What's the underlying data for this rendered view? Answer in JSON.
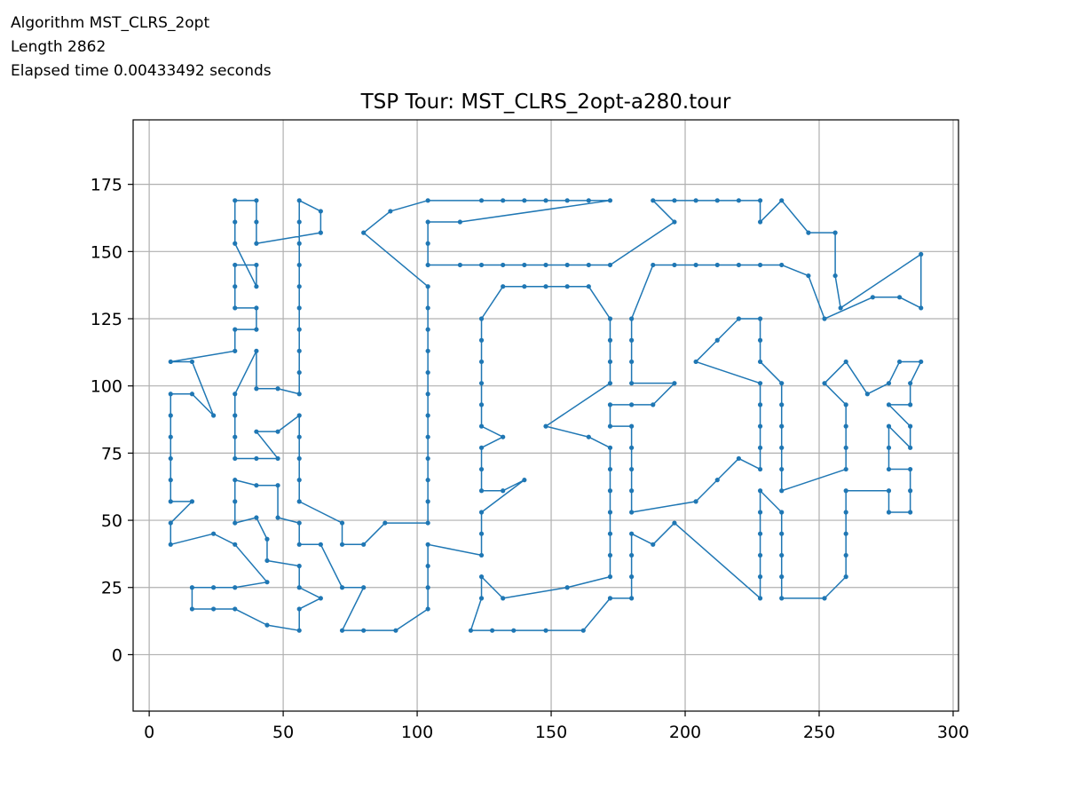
{
  "info_lines": [
    "Algorithm MST_CLRS_2opt",
    "Length 2862",
    "Elapsed time 0.00433492 seconds"
  ],
  "colors": {
    "tour": "#1f77b4",
    "grid": "#b0b0b0",
    "axes": "#000000"
  },
  "chart_data": {
    "type": "line",
    "title": "TSP Tour: MST_CLRS_2opt-a280.tour",
    "xlabel": "",
    "ylabel": "",
    "xlim": [
      -6,
      302
    ],
    "ylim": [
      -21,
      199
    ],
    "xticks": [
      0,
      50,
      100,
      150,
      200,
      250,
      300
    ],
    "yticks": [
      0,
      25,
      50,
      75,
      100,
      125,
      150,
      175
    ],
    "grid": true,
    "markers": true,
    "tour": [
      [
        8,
        41
      ],
      [
        8,
        49
      ],
      [
        16,
        57
      ],
      [
        8,
        57
      ],
      [
        8,
        65
      ],
      [
        8,
        73
      ],
      [
        8,
        81
      ],
      [
        8,
        89
      ],
      [
        8,
        97
      ],
      [
        16,
        97
      ],
      [
        24,
        89
      ],
      [
        16,
        109
      ],
      [
        8,
        109
      ],
      [
        32,
        113
      ],
      [
        32,
        121
      ],
      [
        40,
        121
      ],
      [
        40,
        129
      ],
      [
        32,
        129
      ],
      [
        32,
        137
      ],
      [
        32,
        145
      ],
      [
        40,
        145
      ],
      [
        40,
        137
      ],
      [
        32,
        153
      ],
      [
        32,
        161
      ],
      [
        32,
        169
      ],
      [
        40,
        169
      ],
      [
        40,
        161
      ],
      [
        40,
        153
      ],
      [
        64,
        157
      ],
      [
        64,
        165
      ],
      [
        56,
        169
      ],
      [
        56,
        161
      ],
      [
        56,
        153
      ],
      [
        56,
        145
      ],
      [
        56,
        137
      ],
      [
        56,
        129
      ],
      [
        56,
        121
      ],
      [
        56,
        113
      ],
      [
        56,
        105
      ],
      [
        56,
        97
      ],
      [
        48,
        99
      ],
      [
        40,
        99
      ],
      [
        40,
        113
      ],
      [
        32,
        97
      ],
      [
        32,
        89
      ],
      [
        32,
        81
      ],
      [
        32,
        73
      ],
      [
        40,
        73
      ],
      [
        48,
        73
      ],
      [
        40,
        83
      ],
      [
        48,
        83
      ],
      [
        56,
        89
      ],
      [
        56,
        81
      ],
      [
        56,
        73
      ],
      [
        56,
        65
      ],
      [
        56,
        57
      ],
      [
        72,
        49
      ],
      [
        72,
        41
      ],
      [
        80,
        41
      ],
      [
        88,
        49
      ],
      [
        104,
        49
      ],
      [
        104,
        57
      ],
      [
        104,
        65
      ],
      [
        104,
        73
      ],
      [
        104,
        81
      ],
      [
        104,
        89
      ],
      [
        104,
        97
      ],
      [
        104,
        105
      ],
      [
        104,
        113
      ],
      [
        104,
        121
      ],
      [
        104,
        129
      ],
      [
        104,
        137
      ],
      [
        80,
        157
      ],
      [
        90,
        165
      ],
      [
        104,
        169
      ],
      [
        124,
        169
      ],
      [
        132,
        169
      ],
      [
        140,
        169
      ],
      [
        148,
        169
      ],
      [
        156,
        169
      ],
      [
        164,
        169
      ],
      [
        172,
        169
      ],
      [
        116,
        161
      ],
      [
        104,
        161
      ],
      [
        104,
        153
      ],
      [
        104,
        145
      ],
      [
        116,
        145
      ],
      [
        124,
        145
      ],
      [
        132,
        145
      ],
      [
        140,
        145
      ],
      [
        148,
        145
      ],
      [
        156,
        145
      ],
      [
        164,
        145
      ],
      [
        172,
        145
      ],
      [
        196,
        161
      ],
      [
        188,
        169
      ],
      [
        196,
        169
      ],
      [
        204,
        169
      ],
      [
        212,
        169
      ],
      [
        220,
        169
      ],
      [
        228,
        169
      ],
      [
        228,
        161
      ],
      [
        236,
        169
      ],
      [
        246,
        157
      ],
      [
        256,
        157
      ],
      [
        256,
        141
      ],
      [
        258,
        129
      ],
      [
        288,
        149
      ],
      [
        288,
        129
      ],
      [
        280,
        133
      ],
      [
        270,
        133
      ],
      [
        252,
        125
      ],
      [
        246,
        141
      ],
      [
        236,
        145
      ],
      [
        228,
        145
      ],
      [
        220,
        145
      ],
      [
        212,
        145
      ],
      [
        204,
        145
      ],
      [
        196,
        145
      ],
      [
        188,
        145
      ],
      [
        180,
        125
      ],
      [
        180,
        117
      ],
      [
        180,
        109
      ],
      [
        180,
        101
      ],
      [
        196,
        101
      ],
      [
        188,
        93
      ],
      [
        180,
        93
      ],
      [
        172,
        93
      ],
      [
        172,
        85
      ],
      [
        180,
        85
      ],
      [
        180,
        77
      ],
      [
        180,
        69
      ],
      [
        180,
        61
      ],
      [
        180,
        53
      ],
      [
        204,
        57
      ],
      [
        212,
        65
      ],
      [
        220,
        73
      ],
      [
        228,
        69
      ],
      [
        228,
        77
      ],
      [
        228,
        85
      ],
      [
        228,
        93
      ],
      [
        228,
        101
      ],
      [
        204,
        109
      ],
      [
        212,
        117
      ],
      [
        220,
        125
      ],
      [
        228,
        125
      ],
      [
        228,
        117
      ],
      [
        228,
        109
      ],
      [
        236,
        101
      ],
      [
        236,
        93
      ],
      [
        236,
        85
      ],
      [
        236,
        77
      ],
      [
        236,
        69
      ],
      [
        236,
        61
      ],
      [
        260,
        69
      ],
      [
        260,
        77
      ],
      [
        260,
        85
      ],
      [
        260,
        93
      ],
      [
        252,
        101
      ],
      [
        260,
        109
      ],
      [
        268,
        97
      ],
      [
        276,
        101
      ],
      [
        280,
        109
      ],
      [
        288,
        109
      ],
      [
        284,
        101
      ],
      [
        284,
        93
      ],
      [
        276,
        93
      ],
      [
        284,
        85
      ],
      [
        284,
        77
      ],
      [
        276,
        85
      ],
      [
        276,
        77
      ],
      [
        276,
        69
      ],
      [
        284,
        69
      ],
      [
        284,
        61
      ],
      [
        284,
        53
      ],
      [
        276,
        53
      ],
      [
        276,
        61
      ],
      [
        260,
        61
      ],
      [
        260,
        53
      ],
      [
        260,
        45
      ],
      [
        260,
        37
      ],
      [
        260,
        29
      ],
      [
        252,
        21
      ],
      [
        236,
        21
      ],
      [
        236,
        29
      ],
      [
        236,
        37
      ],
      [
        236,
        45
      ],
      [
        236,
        53
      ],
      [
        228,
        61
      ],
      [
        228,
        53
      ],
      [
        228,
        45
      ],
      [
        228,
        37
      ],
      [
        228,
        29
      ],
      [
        228,
        21
      ],
      [
        196,
        49
      ],
      [
        188,
        41
      ],
      [
        180,
        45
      ],
      [
        180,
        37
      ],
      [
        180,
        29
      ],
      [
        180,
        21
      ],
      [
        172,
        21
      ],
      [
        162,
        9
      ],
      [
        148,
        9
      ],
      [
        136,
        9
      ],
      [
        128,
        9
      ],
      [
        120,
        9
      ],
      [
        124,
        21
      ],
      [
        124,
        29
      ],
      [
        132,
        21
      ],
      [
        156,
        25
      ],
      [
        172,
        29
      ],
      [
        172,
        37
      ],
      [
        172,
        45
      ],
      [
        172,
        53
      ],
      [
        172,
        61
      ],
      [
        172,
        69
      ],
      [
        172,
        77
      ],
      [
        164,
        81
      ],
      [
        148,
        85
      ],
      [
        172,
        101
      ],
      [
        172,
        109
      ],
      [
        172,
        117
      ],
      [
        172,
        125
      ],
      [
        164,
        137
      ],
      [
        156,
        137
      ],
      [
        148,
        137
      ],
      [
        140,
        137
      ],
      [
        132,
        137
      ],
      [
        124,
        125
      ],
      [
        124,
        117
      ],
      [
        124,
        109
      ],
      [
        124,
        101
      ],
      [
        124,
        93
      ],
      [
        124,
        85
      ],
      [
        132,
        81
      ],
      [
        124,
        77
      ],
      [
        124,
        69
      ],
      [
        124,
        61
      ],
      [
        132,
        61
      ],
      [
        140,
        65
      ],
      [
        124,
        53
      ],
      [
        124,
        45
      ],
      [
        124,
        37
      ],
      [
        104,
        41
      ],
      [
        104,
        33
      ],
      [
        104,
        25
      ],
      [
        104,
        17
      ],
      [
        92,
        9
      ],
      [
        80,
        9
      ],
      [
        72,
        9
      ],
      [
        80,
        25
      ],
      [
        72,
        25
      ],
      [
        64,
        41
      ],
      [
        56,
        41
      ],
      [
        56,
        49
      ],
      [
        48,
        51
      ],
      [
        48,
        63
      ],
      [
        40,
        63
      ],
      [
        32,
        65
      ],
      [
        32,
        57
      ],
      [
        32,
        49
      ],
      [
        40,
        51
      ],
      [
        44,
        43
      ],
      [
        44,
        35
      ],
      [
        56,
        33
      ],
      [
        56,
        25
      ],
      [
        64,
        21
      ],
      [
        56,
        17
      ],
      [
        56,
        9
      ],
      [
        44,
        11
      ],
      [
        32,
        17
      ],
      [
        24,
        17
      ],
      [
        16,
        17
      ],
      [
        16,
        25
      ],
      [
        24,
        25
      ],
      [
        32,
        25
      ],
      [
        44,
        27
      ],
      [
        32,
        41
      ],
      [
        24,
        45
      ],
      [
        8,
        41
      ]
    ]
  }
}
